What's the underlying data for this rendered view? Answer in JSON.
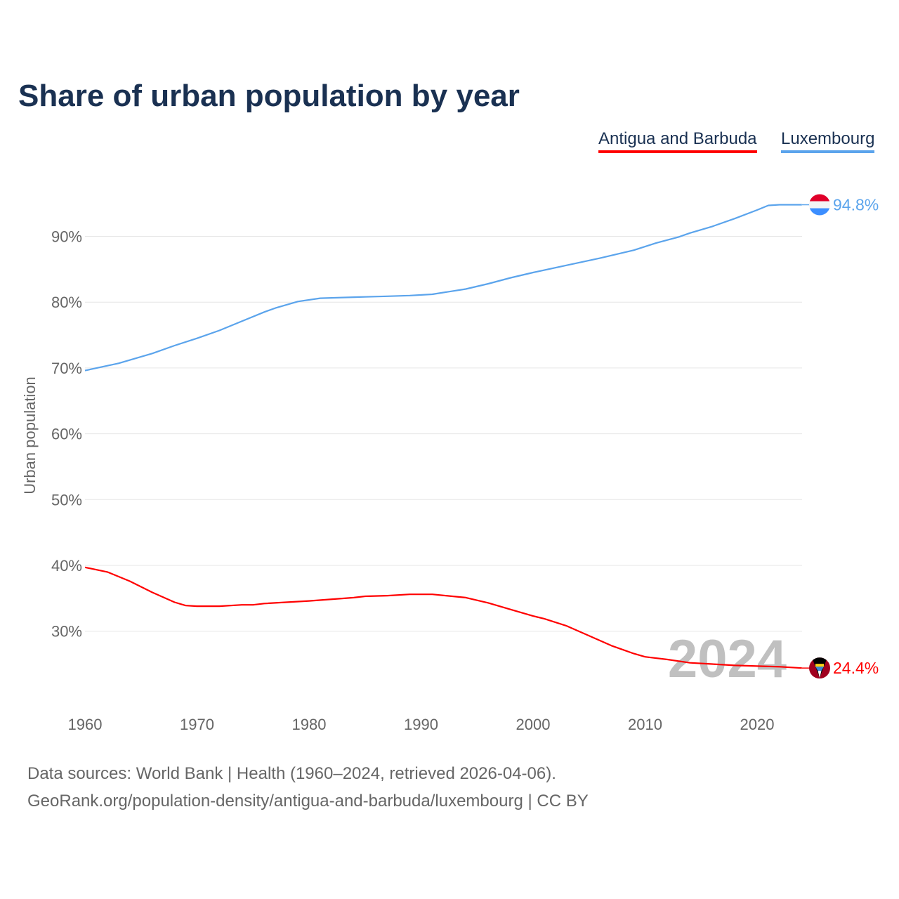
{
  "chart_data": {
    "type": "line",
    "title": "Share of urban population by year",
    "ylabel": "Urban population",
    "xlabel": "",
    "xlim": [
      1960,
      2024
    ],
    "ylim": [
      20,
      97
    ],
    "x_ticks": [
      "1960",
      "1970",
      "1980",
      "1990",
      "2000",
      "2010",
      "2020"
    ],
    "y_ticks": [
      "30%",
      "40%",
      "50%",
      "60%",
      "70%",
      "80%",
      "90%"
    ],
    "y_tick_values": [
      30,
      40,
      50,
      60,
      70,
      80,
      90
    ],
    "grid": true,
    "legend_position": "top-right",
    "year_watermark": "2024",
    "series": [
      {
        "name": "Antigua and Barbuda",
        "color": "#ff0000",
        "end_label": "24.4%",
        "flag": "antigua-and-barbuda-flag",
        "x": [
          1960,
          1962,
          1964,
          1966,
          1968,
          1969,
          1970,
          1972,
          1974,
          1975,
          1976,
          1980,
          1984,
          1985,
          1987,
          1989,
          1991,
          1994,
          1996,
          1998,
          2000,
          2001,
          2003,
          2005,
          2007,
          2009,
          2010,
          2012,
          2014,
          2016,
          2018,
          2020,
          2022,
          2024
        ],
        "values": [
          39.7,
          39.0,
          37.6,
          35.9,
          34.4,
          33.9,
          33.8,
          33.8,
          34.0,
          34.0,
          34.2,
          34.6,
          35.1,
          35.3,
          35.4,
          35.6,
          35.6,
          35.1,
          34.3,
          33.3,
          32.3,
          31.9,
          30.8,
          29.3,
          27.8,
          26.6,
          26.1,
          25.7,
          25.2,
          25.0,
          24.8,
          24.7,
          24.6,
          24.4
        ]
      },
      {
        "name": "Luxembourg",
        "color": "#5ba4ec",
        "end_label": "94.8%",
        "flag": "luxembourg-flag",
        "x": [
          1960,
          1963,
          1966,
          1968,
          1970,
          1972,
          1974,
          1976,
          1977,
          1979,
          1981,
          1983,
          1985,
          1987,
          1989,
          1991,
          1994,
          1996,
          1998,
          2000,
          2003,
          2006,
          2009,
          2011,
          2013,
          2014,
          2016,
          2018,
          2020,
          2021,
          2022,
          2024
        ],
        "values": [
          69.6,
          70.7,
          72.2,
          73.4,
          74.5,
          75.7,
          77.1,
          78.5,
          79.1,
          80.1,
          80.6,
          80.7,
          80.8,
          80.9,
          81.0,
          81.2,
          82.0,
          82.8,
          83.7,
          84.5,
          85.6,
          86.7,
          87.9,
          89.0,
          89.9,
          90.5,
          91.5,
          92.7,
          94.0,
          94.7,
          94.8,
          94.8
        ]
      }
    ]
  },
  "footer": {
    "source": "Data sources: World Bank | Health (1960–2024, retrieved 2026-04-06).",
    "url": "GeoRank.org/population-density/antigua-and-barbuda/luxembourg | CC BY"
  }
}
